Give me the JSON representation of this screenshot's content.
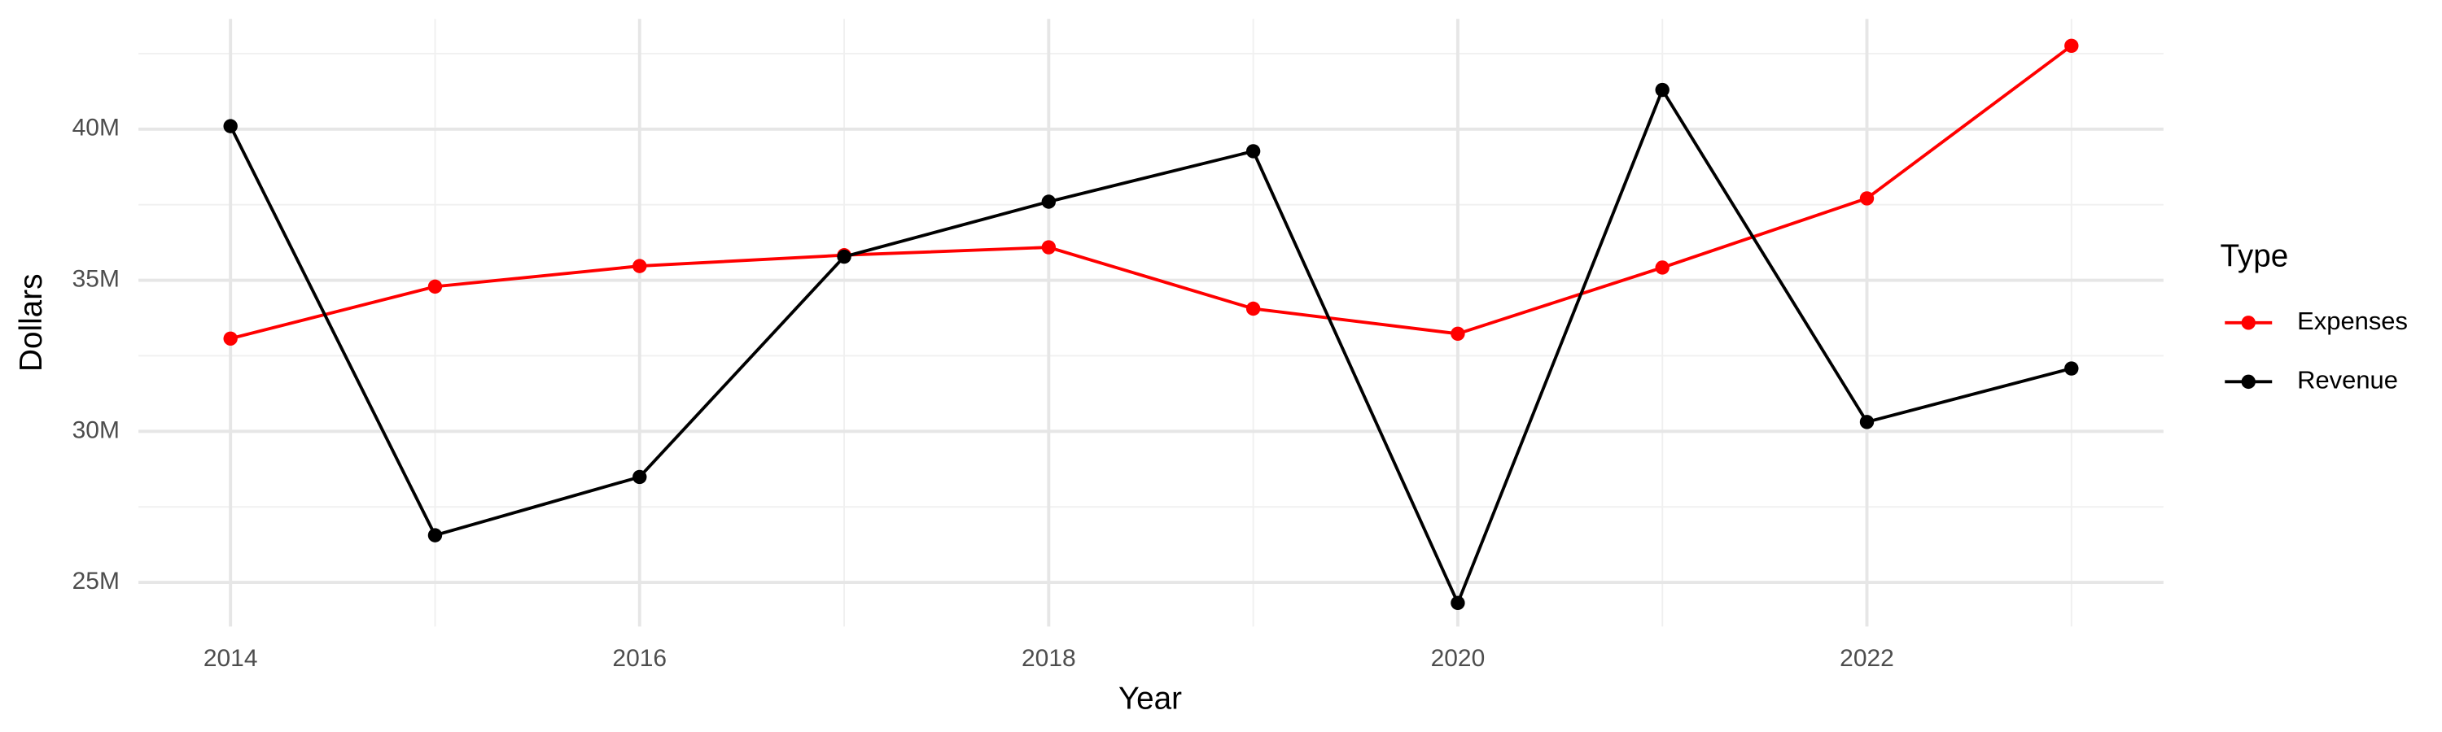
{
  "chart_data": {
    "type": "line",
    "x_label": "Year",
    "y_label": "Dollars",
    "x": [
      2014,
      2015,
      2016,
      2017,
      2018,
      2019,
      2020,
      2021,
      2022,
      2023
    ],
    "series": [
      {
        "name": "Expenses",
        "color": "#ff0000",
        "values": [
          33070000,
          34790000,
          35470000,
          35830000,
          36090000,
          34060000,
          33230000,
          35420000,
          37710000,
          42760000
        ]
      },
      {
        "name": "Revenue",
        "color": "#000000",
        "values": [
          40100000,
          26560000,
          28490000,
          35780000,
          37600000,
          39270000,
          24320000,
          41300000,
          30310000,
          32080000
        ]
      }
    ],
    "xlim": [
      2013.55,
      2023.45
    ],
    "xticks": [
      2014,
      2016,
      2018,
      2020,
      2022
    ],
    "x_minor_ticks": [
      2015,
      2017,
      2019,
      2021,
      2023
    ],
    "ylim": [
      23540000,
      43650000
    ],
    "yticks": [
      {
        "value": 25000000,
        "label": "25M"
      },
      {
        "value": 30000000,
        "label": "30M"
      },
      {
        "value": 35000000,
        "label": "35M"
      },
      {
        "value": 40000000,
        "label": "40M"
      }
    ],
    "y_minor_ticks": [
      27500000,
      32500000,
      37500000,
      42500000
    ],
    "grid": true,
    "legend_title": "Type",
    "legend_position": "right"
  }
}
